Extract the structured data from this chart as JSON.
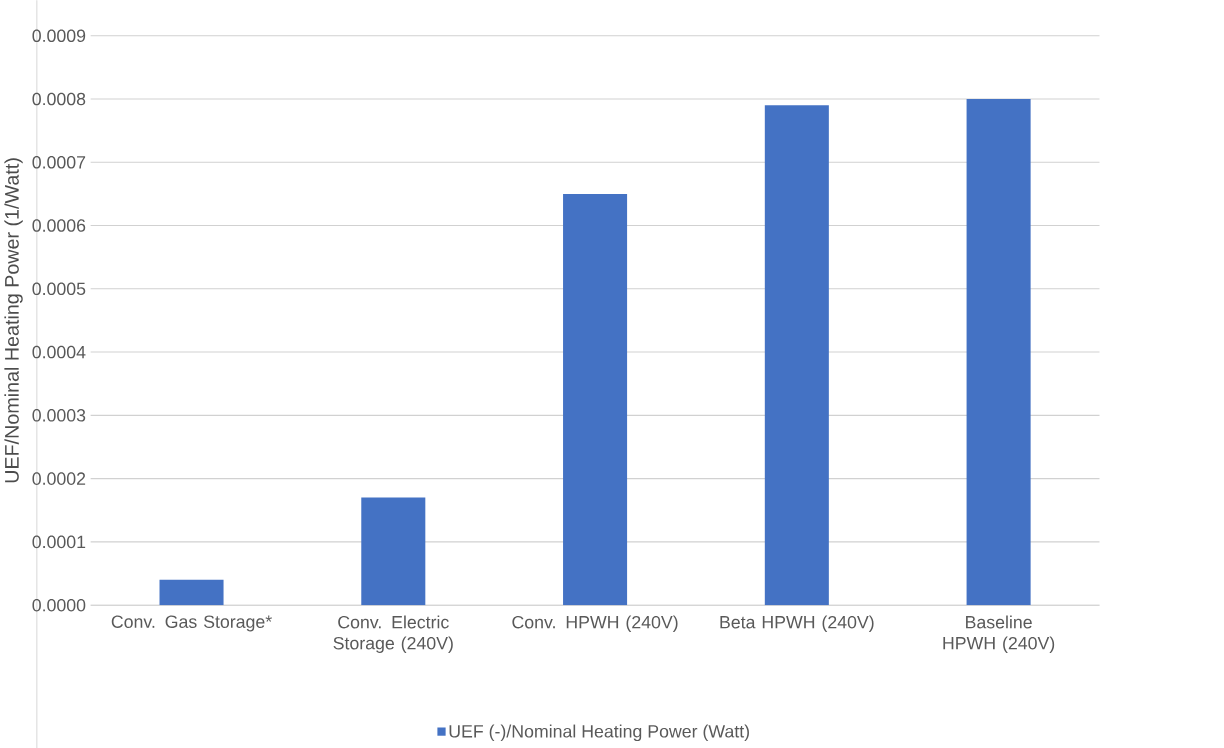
{
  "chart_data": {
    "type": "bar",
    "ylabel": "UEF/Nominal Heating Power (1/Watt)",
    "categories": [
      "Conv. Gas Storage*",
      "Conv. Electric Storage (240V)",
      "Conv. HPWH (240V)",
      "Beta HPWH (240V)",
      "Baseline HPWH (240V)"
    ],
    "series": [
      {
        "name": "UEF (-)/Nominal Heating Power (Watt)",
        "color": "#4472c4",
        "values": [
          4e-05,
          0.00017,
          0.00065,
          0.00079,
          0.0008
        ]
      }
    ],
    "ylim": [
      0,
      0.0009
    ],
    "yticks": [
      {
        "value": 0,
        "label": "0.0000"
      },
      {
        "value": 0.0001,
        "label": "0.0001"
      },
      {
        "value": 0.0002,
        "label": "0.0002"
      },
      {
        "value": 0.0003,
        "label": "0.0003"
      },
      {
        "value": 0.0004,
        "label": "0.0004"
      },
      {
        "value": 0.0005,
        "label": "0.0005"
      },
      {
        "value": 0.0006,
        "label": "0.0006"
      },
      {
        "value": 0.0007,
        "label": "0.0007"
      },
      {
        "value": 0.0008,
        "label": "0.0008"
      },
      {
        "value": 0.0009,
        "label": "0.0009"
      }
    ],
    "grid": "y",
    "legend": "bottom"
  }
}
